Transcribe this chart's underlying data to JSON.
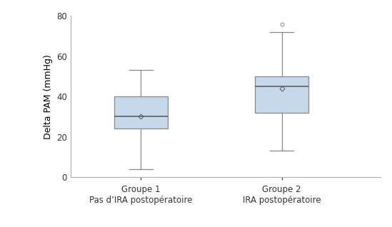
{
  "groups": [
    {
      "label": "Groupe 1\nPas d’IRA postopératoire",
      "q1": 24,
      "median": 30,
      "q3": 40,
      "whisker_low": 4,
      "whisker_high": 53,
      "mean": 30,
      "outliers": []
    },
    {
      "label": "Groupe 2\nIRA postopératoire",
      "q1": 32,
      "median": 45,
      "q3": 50,
      "whisker_low": 13,
      "whisker_high": 72,
      "mean": 44,
      "outliers": [
        76
      ]
    }
  ],
  "ylabel": "Delta PAM (mmHg)",
  "ylim": [
    0,
    80
  ],
  "yticks": [
    0,
    20,
    40,
    60,
    80
  ],
  "box_color": "#c5d8ec",
  "box_edge_color": "#888888",
  "median_color": "#555555",
  "whisker_color": "#888888",
  "mean_marker_color": "#555555",
  "outlier_color": "#888888",
  "background_color": "#ffffff",
  "box_width": 0.38,
  "tick_fontsize": 8.5,
  "label_fontsize": 9,
  "positions": [
    1,
    2
  ],
  "xlim": [
    0.5,
    2.7
  ]
}
